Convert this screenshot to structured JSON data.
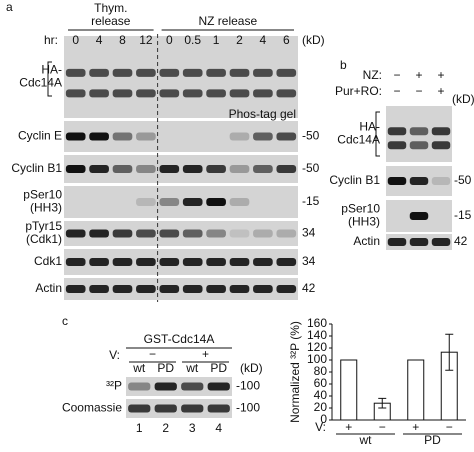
{
  "panel_a": {
    "label": "a",
    "groups": [
      {
        "lines": [
          "Thym.",
          "release"
        ]
      },
      {
        "lines": [
          "NZ release"
        ]
      }
    ],
    "hr_label": "hr:",
    "timepoints": [
      "0",
      "4",
      "8",
      "12",
      "0",
      "0.5",
      "1",
      "2",
      "4",
      "6"
    ],
    "kd_label": "(kD)",
    "annotation": "Phos-tag gel",
    "rows": [
      {
        "lines": [
          "HA-",
          "Cdc14A"
        ]
      },
      {
        "lines": [
          "Cyclin E"
        ],
        "marker": "-50"
      },
      {
        "lines": [
          "Cyclin B1"
        ],
        "marker": "-50"
      },
      {
        "lines": [
          "pSer10",
          "(HH3)"
        ],
        "marker": "-15"
      },
      {
        "lines": [
          "pTyr15",
          "(Cdk1)"
        ],
        "marker": "34"
      },
      {
        "lines": [
          "Cdk1"
        ],
        "marker": "34"
      },
      {
        "lines": [
          "Actin"
        ],
        "marker": "42"
      }
    ]
  },
  "panel_b": {
    "label": "b",
    "conditions": [
      {
        "name": "NZ:",
        "signs": [
          "−",
          "+",
          "+"
        ]
      },
      {
        "name": "Pur+RO:",
        "signs": [
          "−",
          "−",
          "+"
        ]
      }
    ],
    "kd_label": "(kD)",
    "rows": [
      {
        "lines": [
          "HA-",
          "Cdc14A"
        ]
      },
      {
        "lines": [
          "Cyclin B1"
        ],
        "marker": "-50"
      },
      {
        "lines": [
          "pSer10",
          "(HH3)"
        ],
        "marker": "-15"
      },
      {
        "lines": [
          "Actin"
        ],
        "marker": "42"
      }
    ]
  },
  "panel_c": {
    "label": "c",
    "title": "GST-Cdc14A",
    "v_label": "V:",
    "v_signs": [
      "−",
      "+"
    ],
    "lanes": [
      "wt",
      "PD",
      "wt",
      "PD"
    ],
    "kd_label": "(kD)",
    "lane_numbers": [
      "1",
      "2",
      "3",
      "4"
    ],
    "rows": [
      {
        "lines": [
          "³²P"
        ],
        "marker": "-100"
      },
      {
        "lines": [
          "Coomassie"
        ],
        "marker": "-100"
      }
    ]
  },
  "chart_data": {
    "type": "bar",
    "y_label": "Normalized ³²P (%)",
    "x_row_label": "V:",
    "categories": [
      "+",
      "−",
      "+",
      "−"
    ],
    "groups": [
      "wt",
      "PD"
    ],
    "values": [
      100,
      28,
      100,
      113
    ],
    "errors": [
      null,
      8,
      null,
      30
    ],
    "color": "#ffffff",
    "ylim": [
      0,
      160
    ],
    "yticks": [
      0,
      20,
      40,
      60,
      80,
      100,
      120,
      140,
      160
    ]
  }
}
